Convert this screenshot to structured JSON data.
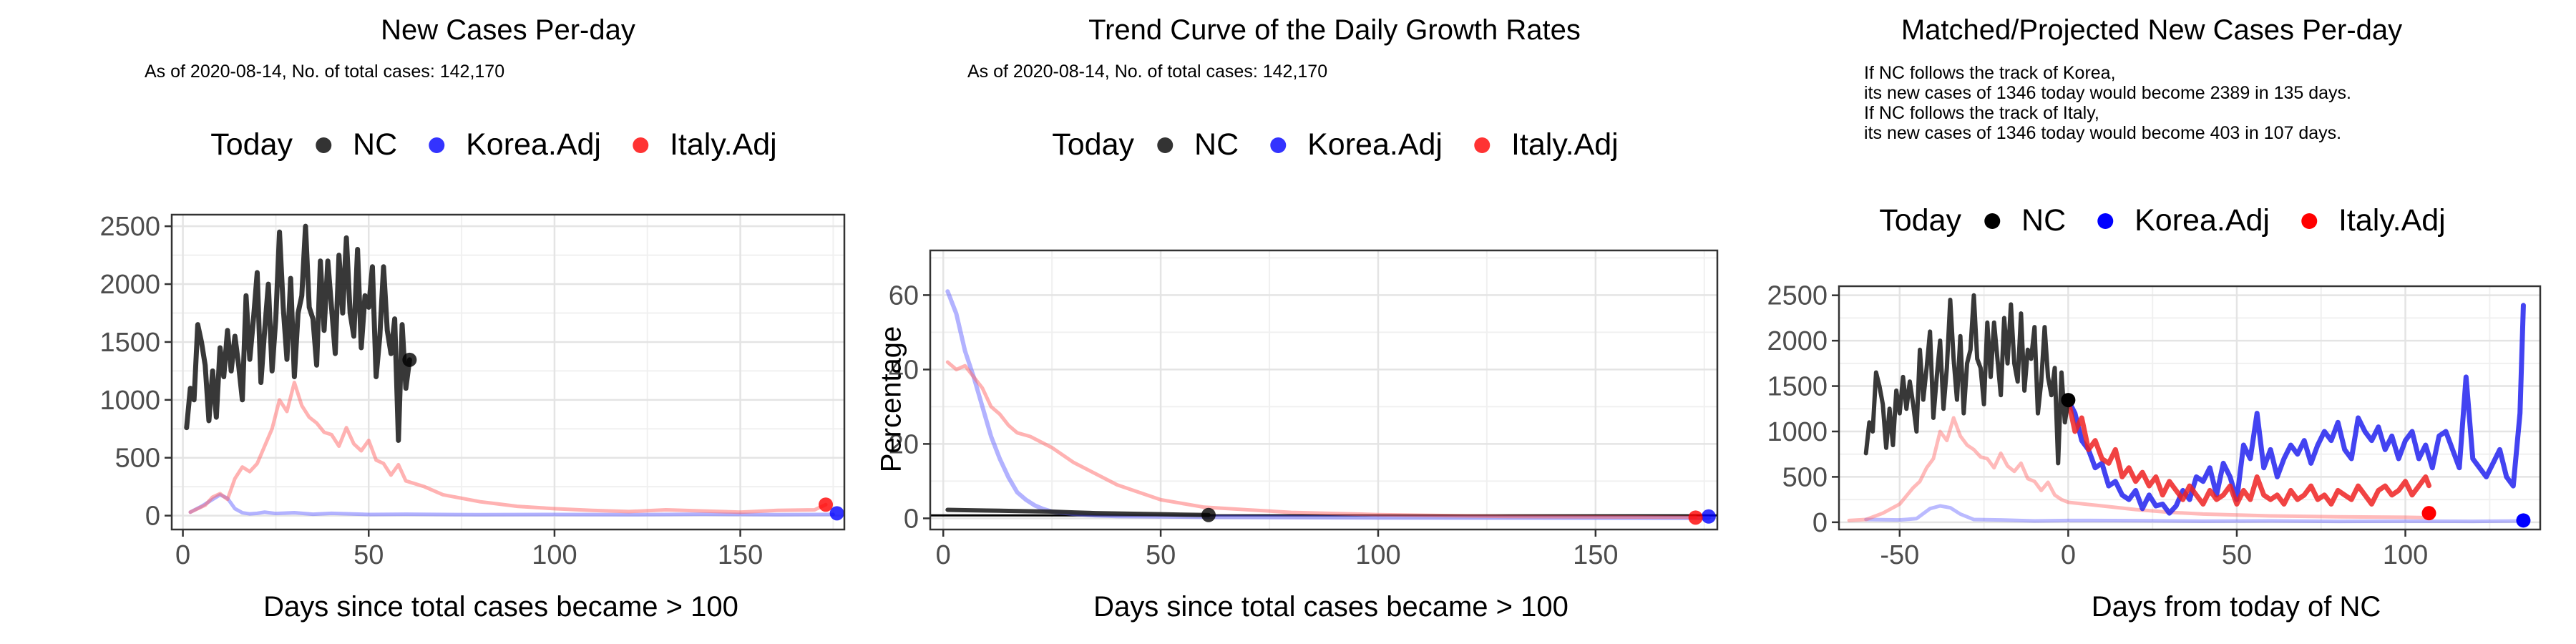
{
  "colors": {
    "NC": "#000000",
    "Korea.Adj": "#0000ff",
    "Italy.Adj": "#ff0000"
  },
  "legend": {
    "title": "Today",
    "labels": [
      "NC",
      "Korea.Adj",
      "Italy.Adj"
    ]
  },
  "panels": {
    "p1": {
      "title": "New Cases Per-day",
      "subtitle": "As of 2020-08-14, No. of total cases: 142,170"
    },
    "p2": {
      "title": "Trend Curve of the Daily Growth Rates",
      "subtitle": "As of 2020-08-14, No. of total cases: 142,170"
    },
    "p3": {
      "title": "Matched/Projected New Cases Per-day",
      "notes": [
        "If NC follows the track of Korea,",
        "its new cases of 1346 today would become 2389 in 135 days.",
        "If NC follows the track of Italy,",
        "its new cases of 1346 today would become 403 in 107 days."
      ]
    }
  },
  "chart_data": [
    {
      "type": "line",
      "title": "New Cases Per-day",
      "xlabel": "Days since total cases became > 100",
      "ylabel": "",
      "xlim": [
        -3,
        178
      ],
      "ylim": [
        -120,
        2600
      ],
      "xticks": [
        0,
        50,
        100,
        150
      ],
      "yticks": [
        0,
        500,
        1000,
        1500,
        2000,
        2500
      ],
      "grid": true,
      "legend_position": "top",
      "series": [
        {
          "name": "NC",
          "x": [
            1,
            2,
            3,
            4,
            5,
            6,
            7,
            8,
            9,
            10,
            11,
            12,
            13,
            14,
            15,
            16,
            17,
            18,
            19,
            20,
            21,
            22,
            23,
            24,
            25,
            26,
            27,
            28,
            29,
            30,
            31,
            32,
            33,
            34,
            35,
            36,
            37,
            38,
            39,
            40,
            41,
            42,
            43,
            44,
            45,
            46,
            47,
            48,
            49,
            50,
            51,
            52,
            53,
            54,
            55,
            56,
            57,
            58,
            59,
            60,
            61
          ],
          "y": [
            760,
            1100,
            1000,
            1650,
            1500,
            1300,
            820,
            1250,
            850,
            1450,
            1200,
            1600,
            1250,
            1550,
            1300,
            1000,
            1900,
            1350,
            1700,
            2100,
            1150,
            1600,
            2000,
            1250,
            1700,
            2450,
            1800,
            1350,
            2050,
            1200,
            1750,
            1900,
            2500,
            1800,
            1700,
            1300,
            2200,
            1600,
            2200,
            1800,
            1400,
            2250,
            1750,
            2400,
            1750,
            1550,
            2300,
            1450,
            1900,
            1800,
            2150,
            1200,
            1550,
            2150,
            1600,
            1400,
            1700,
            650,
            1650,
            1100,
            1346
          ]
        },
        {
          "name": "Korea.Adj",
          "x": [
            2,
            5,
            8,
            10,
            12,
            14,
            16,
            18,
            20,
            22,
            25,
            30,
            35,
            40,
            50,
            60,
            80,
            100,
            120,
            140,
            160,
            175
          ],
          "y": [
            30,
            80,
            140,
            180,
            150,
            60,
            25,
            15,
            20,
            30,
            18,
            25,
            12,
            20,
            10,
            12,
            8,
            10,
            8,
            12,
            8,
            10
          ]
        },
        {
          "name": "Italy.Adj",
          "x": [
            2,
            4,
            6,
            8,
            10,
            12,
            14,
            16,
            18,
            20,
            22,
            24,
            26,
            28,
            30,
            32,
            34,
            36,
            38,
            40,
            42,
            44,
            46,
            48,
            50,
            52,
            54,
            56,
            58,
            60,
            65,
            70,
            75,
            80,
            85,
            90,
            95,
            100,
            110,
            120,
            130,
            140,
            150,
            160,
            170,
            173
          ],
          "y": [
            30,
            60,
            90,
            160,
            190,
            140,
            320,
            420,
            380,
            450,
            600,
            750,
            1000,
            900,
            1150,
            950,
            850,
            800,
            720,
            700,
            600,
            760,
            620,
            560,
            650,
            480,
            450,
            350,
            440,
            300,
            250,
            180,
            150,
            120,
            100,
            80,
            70,
            60,
            45,
            35,
            50,
            40,
            30,
            45,
            50,
            95
          ]
        }
      ],
      "today_points": [
        {
          "name": "NC",
          "x": 61,
          "y": 1346
        },
        {
          "name": "Korea.Adj",
          "x": 176,
          "y": 20
        },
        {
          "name": "Italy.Adj",
          "x": 173,
          "y": 95
        }
      ]
    },
    {
      "type": "line",
      "title": "Trend Curve of the Daily Growth Rates",
      "xlabel": "Days since total cases became > 100",
      "ylabel": "Percentage",
      "xlim": [
        -3,
        178
      ],
      "ylim": [
        -3,
        72
      ],
      "xticks": [
        0,
        50,
        100,
        150
      ],
      "yticks": [
        0,
        20,
        40,
        60
      ],
      "hline": 0.8,
      "grid": true,
      "legend_position": "top",
      "series": [
        {
          "name": "NC",
          "x": [
            1,
            5,
            10,
            15,
            20,
            25,
            30,
            35,
            40,
            45,
            50,
            55,
            61
          ],
          "y": [
            2.3,
            2.2,
            2.1,
            2.0,
            1.9,
            1.8,
            1.6,
            1.4,
            1.3,
            1.2,
            1.1,
            1.0,
            0.9
          ]
        },
        {
          "name": "Korea.Adj",
          "x": [
            1,
            3,
            5,
            7,
            9,
            11,
            13,
            15,
            17,
            19,
            21,
            23,
            25,
            30,
            35,
            40,
            60,
            100,
            176
          ],
          "y": [
            61,
            55,
            45,
            38,
            30,
            22,
            16,
            11,
            7,
            5,
            3.5,
            2.5,
            1.8,
            1.2,
            0.8,
            0.6,
            0.4,
            0.2,
            0.1
          ]
        },
        {
          "name": "Italy.Adj",
          "x": [
            1,
            3,
            5,
            7,
            9,
            11,
            13,
            15,
            17,
            20,
            25,
            30,
            35,
            40,
            45,
            50,
            55,
            60,
            70,
            80,
            100,
            130,
            173
          ],
          "y": [
            42,
            40,
            41,
            38,
            35,
            30,
            28,
            25,
            23,
            22,
            19,
            15,
            12,
            9,
            7,
            5,
            4,
            3,
            2.3,
            1.6,
            1.0,
            0.5,
            0.3
          ]
        }
      ],
      "today_points": [
        {
          "name": "NC",
          "x": 61,
          "y": 0.9
        },
        {
          "name": "Korea.Adj",
          "x": 176,
          "y": 0.5
        },
        {
          "name": "Italy.Adj",
          "x": 173,
          "y": 0.2
        }
      ]
    },
    {
      "type": "line",
      "title": "Matched/Projected New Cases Per-day",
      "xlabel": "Days from today of NC",
      "ylabel": "",
      "xlim": [
        -68,
        140
      ],
      "ylim": [
        -80,
        2600
      ],
      "xticks": [
        -50,
        0,
        50,
        100
      ],
      "yticks": [
        0,
        500,
        1000,
        1500,
        2000,
        2500
      ],
      "grid": true,
      "legend_position": "top",
      "series": [
        {
          "name": "NC",
          "x": [
            -60,
            -59,
            -58,
            -57,
            -56,
            -55,
            -54,
            -53,
            -52,
            -51,
            -50,
            -49,
            -48,
            -47,
            -46,
            -45,
            -44,
            -43,
            -42,
            -41,
            -40,
            -39,
            -38,
            -37,
            -36,
            -35,
            -34,
            -33,
            -32,
            -31,
            -30,
            -29,
            -28,
            -27,
            -26,
            -25,
            -24,
            -23,
            -22,
            -21,
            -20,
            -19,
            -18,
            -17,
            -16,
            -15,
            -14,
            -13,
            -12,
            -11,
            -10,
            -9,
            -8,
            -7,
            -6,
            -5,
            -4,
            -3,
            -2,
            -1,
            0
          ],
          "y": [
            760,
            1100,
            1000,
            1650,
            1500,
            1300,
            820,
            1250,
            850,
            1450,
            1200,
            1600,
            1250,
            1550,
            1300,
            1000,
            1900,
            1350,
            1700,
            2100,
            1150,
            1600,
            2000,
            1250,
            1700,
            2450,
            1800,
            1350,
            2050,
            1200,
            1750,
            1900,
            2500,
            1800,
            1700,
            1300,
            2200,
            1600,
            2200,
            1800,
            1400,
            2250,
            1750,
            2400,
            1750,
            1550,
            2300,
            1450,
            1900,
            1800,
            2150,
            1200,
            1550,
            2150,
            1600,
            1400,
            1700,
            650,
            1650,
            1100,
            1346
          ]
        },
        {
          "name": "Korea.Adj (history)",
          "x": [
            -60,
            -50,
            -45,
            -41,
            -38,
            -35,
            -32,
            -28,
            -20,
            -10,
            0,
            20,
            40,
            60,
            80,
            100,
            120,
            135
          ],
          "y": [
            30,
            25,
            40,
            150,
            180,
            160,
            90,
            30,
            25,
            15,
            20,
            18,
            12,
            15,
            10,
            12,
            10,
            15
          ]
        },
        {
          "name": "Italy.Adj (history)",
          "x": [
            -65,
            -60,
            -55,
            -50,
            -46,
            -44,
            -42,
            -40,
            -38,
            -36,
            -34,
            -32,
            -30,
            -28,
            -26,
            -24,
            -22,
            -20,
            -18,
            -16,
            -14,
            -12,
            -10,
            -8,
            -6,
            -4,
            -2,
            0,
            5,
            10,
            20,
            30,
            40,
            60,
            80,
            100,
            107
          ],
          "y": [
            20,
            30,
            100,
            200,
            380,
            450,
            600,
            700,
            1000,
            900,
            1150,
            950,
            850,
            800,
            720,
            700,
            600,
            760,
            620,
            560,
            650,
            480,
            450,
            350,
            440,
            300,
            250,
            220,
            200,
            180,
            140,
            110,
            90,
            70,
            60,
            55,
            50
          ]
        },
        {
          "name": "Korea.Adj (projected)",
          "x": [
            0,
            2,
            4,
            6,
            8,
            10,
            12,
            14,
            16,
            18,
            20,
            22,
            24,
            26,
            28,
            30,
            32,
            34,
            36,
            38,
            40,
            42,
            44,
            46,
            48,
            50,
            52,
            54,
            56,
            58,
            60,
            62,
            64,
            66,
            68,
            70,
            72,
            74,
            76,
            78,
            80,
            82,
            84,
            86,
            88,
            90,
            92,
            94,
            96,
            98,
            100,
            102,
            104,
            106,
            108,
            110,
            112,
            114,
            116,
            118,
            120,
            122,
            124,
            126,
            128,
            130,
            132,
            134,
            135
          ],
          "y": [
            1346,
            1200,
            900,
            800,
            600,
            650,
            400,
            450,
            300,
            250,
            350,
            150,
            300,
            180,
            200,
            100,
            180,
            350,
            250,
            500,
            450,
            600,
            300,
            650,
            500,
            250,
            850,
            700,
            1200,
            600,
            800,
            500,
            700,
            850,
            750,
            900,
            650,
            850,
            1000,
            900,
            1100,
            800,
            700,
            1150,
            1000,
            900,
            1050,
            800,
            950,
            700,
            900,
            1000,
            700,
            850,
            600,
            950,
            1000,
            800,
            600,
            1600,
            700,
            600,
            500,
            650,
            800,
            500,
            400,
            1200,
            2389
          ]
        },
        {
          "name": "Italy.Adj (projected)",
          "x": [
            0,
            2,
            4,
            6,
            8,
            10,
            12,
            14,
            16,
            18,
            20,
            22,
            24,
            26,
            28,
            30,
            32,
            34,
            36,
            38,
            40,
            42,
            44,
            46,
            48,
            50,
            52,
            54,
            56,
            58,
            60,
            62,
            64,
            66,
            68,
            70,
            72,
            74,
            76,
            78,
            80,
            82,
            84,
            86,
            88,
            90,
            92,
            94,
            96,
            98,
            100,
            102,
            104,
            106,
            107
          ],
          "y": [
            1346,
            1000,
            1150,
            800,
            900,
            700,
            650,
            800,
            500,
            600,
            450,
            550,
            400,
            500,
            300,
            450,
            350,
            250,
            400,
            300,
            200,
            350,
            250,
            300,
            400,
            200,
            350,
            250,
            500,
            300,
            250,
            300,
            200,
            350,
            250,
            300,
            400,
            250,
            300,
            200,
            350,
            300,
            250,
            400,
            300,
            200,
            350,
            400,
            300,
            350,
            450,
            300,
            400,
            500,
            403
          ]
        }
      ],
      "today_points": [
        {
          "name": "NC",
          "x": 0,
          "y": 1346
        },
        {
          "name": "Korea.Adj",
          "x": 135,
          "y": 20
        },
        {
          "name": "Italy.Adj",
          "x": 107,
          "y": 100
        }
      ]
    }
  ]
}
